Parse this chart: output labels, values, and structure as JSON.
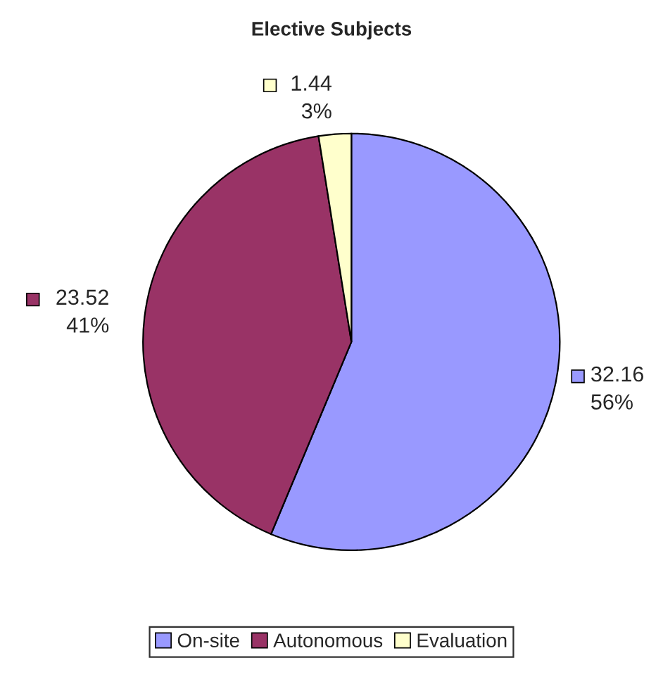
{
  "chart_data": {
    "type": "pie",
    "title": "Elective Subjects",
    "categories": [
      "On-site",
      "Autonomous",
      "Evaluation"
    ],
    "values": [
      32.16,
      23.52,
      1.44
    ],
    "colors": [
      "#9999ff",
      "#993366",
      "#ffffcc"
    ],
    "value_labels": [
      "32.16\n56%",
      "23.52\n41%",
      "1.44\n3%"
    ],
    "legend": "bottom"
  }
}
